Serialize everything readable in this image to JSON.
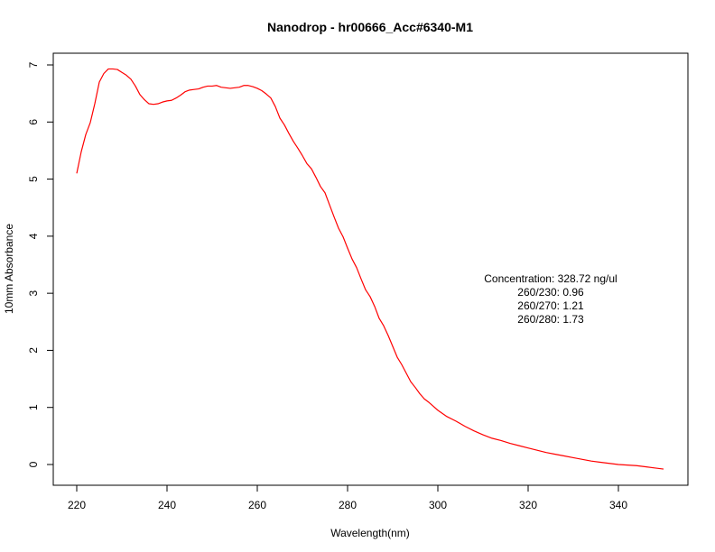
{
  "chart_data": {
    "type": "line",
    "title": "Nanodrop - hr00666_Acc#6340-M1",
    "xlabel": "Wavelength(nm)",
    "ylabel": "10mm Absorbance",
    "xlim": [
      220,
      350
    ],
    "ylim": [
      0,
      7
    ],
    "xticks": [
      220,
      240,
      260,
      280,
      300,
      320,
      340
    ],
    "yticks": [
      0,
      1,
      2,
      3,
      4,
      5,
      6,
      7
    ],
    "grid": false,
    "series": [
      {
        "color": "#ff0000",
        "x": [
          220,
          221,
          222,
          223,
          224,
          225,
          226,
          227,
          228,
          229,
          230,
          231,
          232,
          233,
          234,
          235,
          236,
          237,
          238,
          239,
          240,
          241,
          242,
          243,
          244,
          245,
          246,
          247,
          248,
          249,
          250,
          251,
          252,
          253,
          254,
          255,
          256,
          257,
          258,
          259,
          260,
          261,
          262,
          263,
          264,
          265,
          266,
          267,
          268,
          269,
          270,
          271,
          272,
          273,
          274,
          275,
          276,
          277,
          278,
          279,
          280,
          281,
          282,
          283,
          284,
          285,
          286,
          287,
          288,
          289,
          290,
          291,
          292,
          293,
          294,
          295,
          296,
          297,
          298,
          299,
          300,
          302,
          304,
          306,
          308,
          310,
          312,
          314,
          316,
          318,
          320,
          322,
          324,
          326,
          328,
          330,
          332,
          334,
          336,
          338,
          340,
          342,
          344,
          346,
          348,
          350
        ],
        "y": [
          5.1,
          5.48,
          5.78,
          5.99,
          6.32,
          6.7,
          6.85,
          6.93,
          6.93,
          6.92,
          6.87,
          6.82,
          6.75,
          6.63,
          6.48,
          6.39,
          6.32,
          6.31,
          6.32,
          6.35,
          6.37,
          6.38,
          6.42,
          6.47,
          6.53,
          6.56,
          6.57,
          6.58,
          6.61,
          6.63,
          6.63,
          6.64,
          6.61,
          6.6,
          6.59,
          6.6,
          6.61,
          6.64,
          6.64,
          6.62,
          6.59,
          6.55,
          6.49,
          6.42,
          6.27,
          6.07,
          5.95,
          5.8,
          5.66,
          5.54,
          5.41,
          5.27,
          5.18,
          5.03,
          4.87,
          4.76,
          4.55,
          4.34,
          4.14,
          3.99,
          3.79,
          3.6,
          3.45,
          3.25,
          3.06,
          2.94,
          2.77,
          2.56,
          2.43,
          2.26,
          2.07,
          1.88,
          1.75,
          1.6,
          1.45,
          1.35,
          1.24,
          1.15,
          1.09,
          1.02,
          0.95,
          0.84,
          0.76,
          0.67,
          0.59,
          0.52,
          0.46,
          0.42,
          0.37,
          0.33,
          0.29,
          0.25,
          0.21,
          0.18,
          0.15,
          0.12,
          0.09,
          0.06,
          0.04,
          0.02,
          0.0,
          -0.01,
          -0.02,
          -0.04,
          -0.06,
          -0.08
        ]
      }
    ],
    "annotations": [
      "Concentration: 328.72 ng/ul",
      "260/230: 0.96",
      "260/270: 1.21",
      "260/280: 1.73"
    ]
  }
}
